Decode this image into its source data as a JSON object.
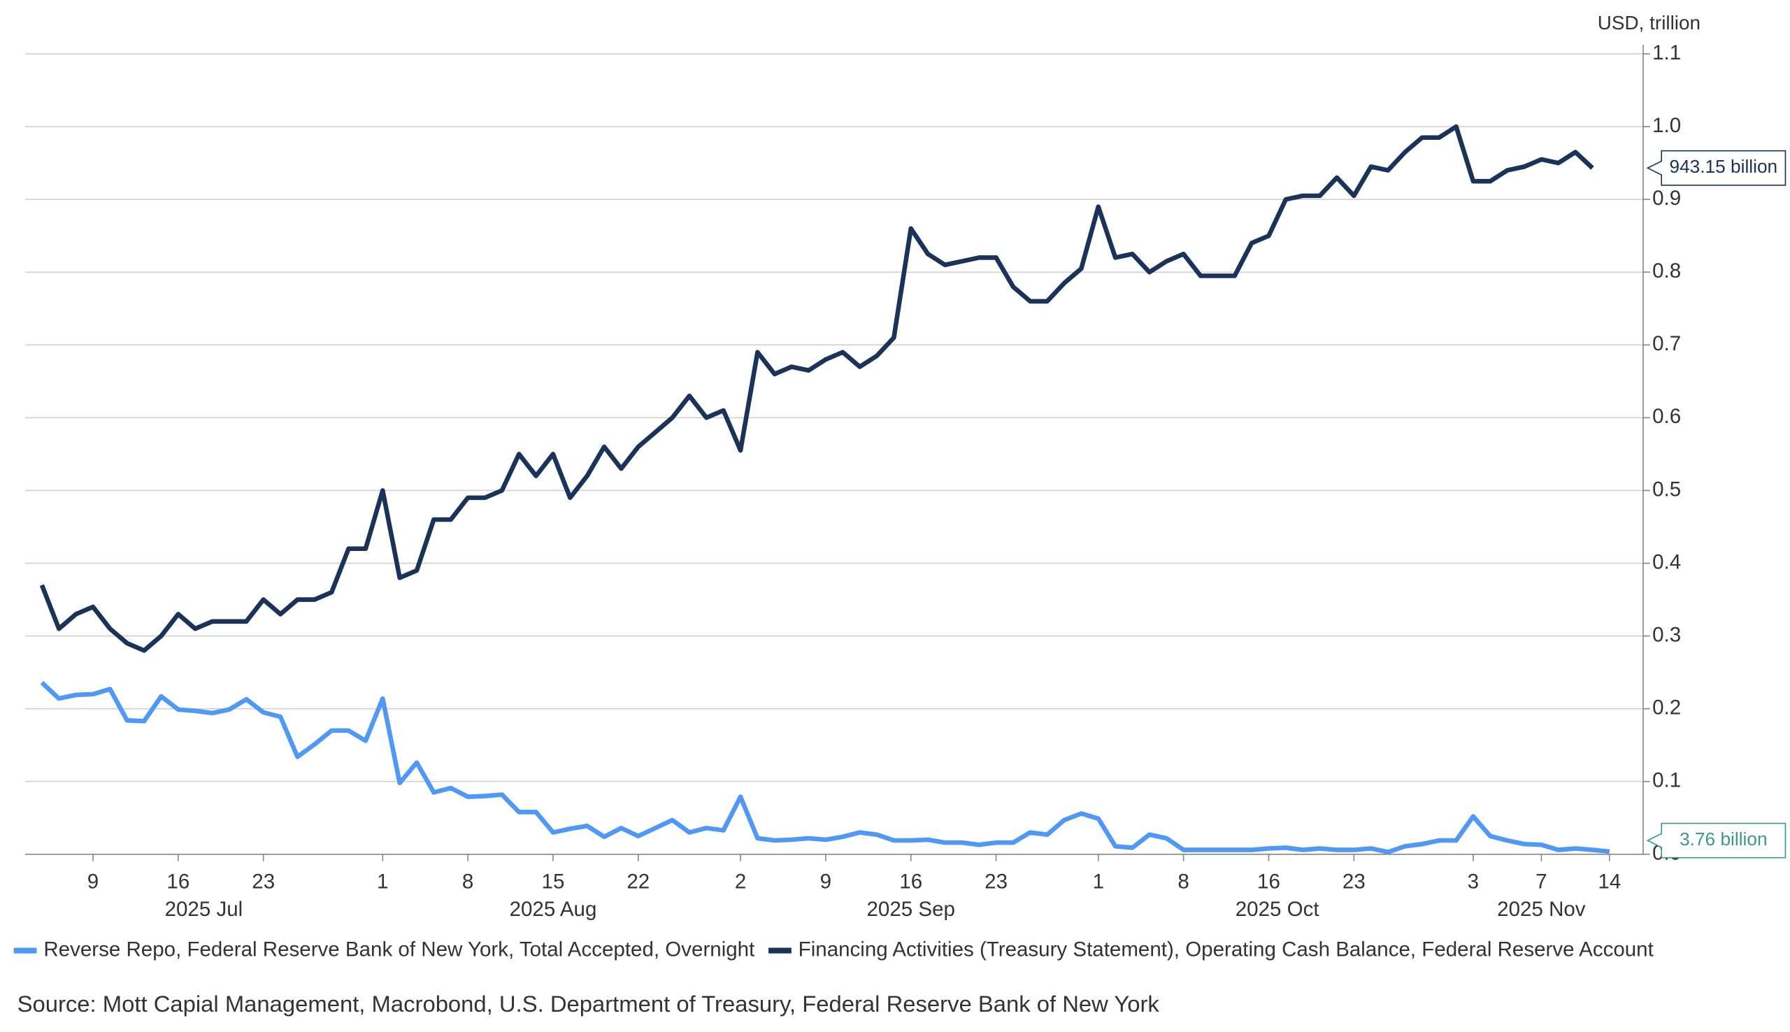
{
  "chart_data": {
    "type": "line",
    "y_axis_label": "USD, trillion",
    "source": "Source: Mott Capial Management, Macrobond, U.S. Department of Treasury, Federal Reserve Bank of New York",
    "grid": true,
    "y_axis_side": "right",
    "x": [
      "2025-07-03",
      "2025-07-07",
      "2025-07-08",
      "2025-07-09",
      "2025-07-10",
      "2025-07-11",
      "2025-07-14",
      "2025-07-15",
      "2025-07-16",
      "2025-07-17",
      "2025-07-18",
      "2025-07-21",
      "2025-07-22",
      "2025-07-23",
      "2025-07-24",
      "2025-07-25",
      "2025-07-28",
      "2025-07-29",
      "2025-07-30",
      "2025-07-31",
      "2025-08-01",
      "2025-08-04",
      "2025-08-05",
      "2025-08-06",
      "2025-08-07",
      "2025-08-08",
      "2025-08-11",
      "2025-08-12",
      "2025-08-13",
      "2025-08-14",
      "2025-08-15",
      "2025-08-18",
      "2025-08-19",
      "2025-08-20",
      "2025-08-21",
      "2025-08-22",
      "2025-08-25",
      "2025-08-26",
      "2025-08-27",
      "2025-08-28",
      "2025-08-29",
      "2025-09-02",
      "2025-09-03",
      "2025-09-04",
      "2025-09-05",
      "2025-09-08",
      "2025-09-09",
      "2025-09-10",
      "2025-09-11",
      "2025-09-12",
      "2025-09-15",
      "2025-09-16",
      "2025-09-17",
      "2025-09-18",
      "2025-09-19",
      "2025-09-22",
      "2025-09-23",
      "2025-09-24",
      "2025-09-25",
      "2025-09-26",
      "2025-09-29",
      "2025-09-30",
      "2025-10-01",
      "2025-10-02",
      "2025-10-03",
      "2025-10-06",
      "2025-10-07",
      "2025-10-08",
      "2025-10-09",
      "2025-10-10",
      "2025-10-14",
      "2025-10-15",
      "2025-10-16",
      "2025-10-17",
      "2025-10-20",
      "2025-10-21",
      "2025-10-22",
      "2025-10-23",
      "2025-10-24",
      "2025-10-27",
      "2025-10-28",
      "2025-10-29",
      "2025-10-30",
      "2025-10-31",
      "2025-11-03",
      "2025-11-04",
      "2025-11-05",
      "2025-11-06",
      "2025-11-07",
      "2025-11-10",
      "2025-11-12",
      "2025-11-13",
      "2025-11-14"
    ],
    "xticks": [
      {
        "value": "2025-07-09",
        "label": "9"
      },
      {
        "value": "2025-07-16",
        "label": "16"
      },
      {
        "value": "2025-07-23",
        "label": "23"
      },
      {
        "value": "2025-08-01",
        "label": "1"
      },
      {
        "value": "2025-08-08",
        "label": "8"
      },
      {
        "value": "2025-08-15",
        "label": "15"
      },
      {
        "value": "2025-08-22",
        "label": "22"
      },
      {
        "value": "2025-09-02",
        "label": "2"
      },
      {
        "value": "2025-09-09",
        "label": "9"
      },
      {
        "value": "2025-09-16",
        "label": "16"
      },
      {
        "value": "2025-09-23",
        "label": "23"
      },
      {
        "value": "2025-10-01",
        "label": "1"
      },
      {
        "value": "2025-10-08",
        "label": "8"
      },
      {
        "value": "2025-10-16",
        "label": "16"
      },
      {
        "value": "2025-10-23",
        "label": "23"
      },
      {
        "value": "2025-11-03",
        "label": "3"
      },
      {
        "value": "2025-11-07",
        "label": "7"
      },
      {
        "value": "2025-11-14",
        "label": "14"
      }
    ],
    "month_labels": [
      "2025 Jul",
      "2025 Aug",
      "2025 Sep",
      "2025 Oct",
      "2025 Nov"
    ],
    "ylim": [
      0,
      1.1
    ],
    "yticks": [
      {
        "value": 0,
        "label": "0.0"
      },
      0.1,
      0.2,
      0.3,
      0.4,
      0.5,
      0.6,
      0.7,
      0.8,
      0.9,
      {
        "value": 1,
        "label": "1.0"
      },
      1.1
    ],
    "series": [
      {
        "name": "Reverse Repo, Federal Reserve Bank of New York, Total Accepted, Overnight",
        "color": "#4f98f5",
        "values": [
          0.236,
          0.214,
          0.219,
          0.22,
          0.227,
          0.184,
          0.183,
          0.217,
          0.199,
          0.197,
          0.194,
          0.199,
          0.213,
          0.195,
          0.189,
          0.134,
          0.151,
          0.17,
          0.17,
          0.156,
          0.214,
          0.098,
          0.126,
          0.085,
          0.091,
          0.079,
          0.08,
          0.082,
          0.058,
          0.058,
          0.03,
          0.035,
          0.039,
          0.024,
          0.036,
          0.025,
          0.036,
          0.047,
          0.03,
          0.036,
          0.033,
          0.079,
          0.022,
          0.019,
          0.02,
          0.022,
          0.02,
          0.024,
          0.03,
          0.027,
          0.019,
          0.019,
          0.02,
          0.016,
          0.016,
          0.013,
          0.016,
          0.016,
          0.03,
          0.027,
          0.047,
          0.056,
          0.049,
          0.011,
          0.009,
          0.027,
          0.022,
          0.006,
          0.006,
          0.006,
          0.006,
          0.006,
          0.008,
          0.009,
          0.006,
          0.008,
          0.006,
          0.006,
          0.008,
          0.003,
          0.011,
          0.014,
          0.019,
          0.019,
          0.052,
          0.025,
          0.019,
          0.014,
          0.013,
          0.006,
          0.008,
          0.006,
          0.00376
        ],
        "value_labels": [
          null,
          null,
          null,
          null,
          null,
          null,
          null,
          null,
          null,
          null,
          null,
          null,
          null,
          null,
          null,
          null,
          null,
          null,
          null,
          null,
          null,
          null,
          null,
          null,
          null,
          null,
          null,
          null,
          null,
          null,
          null,
          null,
          null,
          null,
          null,
          null,
          null,
          null,
          null,
          null,
          null,
          null,
          null,
          null,
          null,
          null,
          null,
          null,
          null,
          null,
          null,
          null,
          null,
          null,
          null,
          null,
          null,
          null,
          null,
          null,
          null,
          null,
          null,
          null,
          null,
          null,
          null,
          null,
          null,
          null,
          null,
          null,
          null,
          null,
          null,
          null,
          null,
          null,
          null,
          null,
          null,
          null,
          null,
          null,
          null,
          null,
          null,
          null,
          null,
          null,
          null,
          null,
          "3.76 billion"
        ],
        "label_color": "#3a9a8a"
      },
      {
        "name": "Financing Activities (Treasury Statement), Operating Cash Balance, Federal Reserve Account",
        "color": "#1b3358",
        "values": [
          0.37,
          0.31,
          0.33,
          0.34,
          0.31,
          0.29,
          0.28,
          0.3,
          0.33,
          0.31,
          0.32,
          0.32,
          0.32,
          0.35,
          0.33,
          0.35,
          0.35,
          0.36,
          0.42,
          0.42,
          0.5,
          0.38,
          0.39,
          0.46,
          0.46,
          0.49,
          0.49,
          0.5,
          0.55,
          0.52,
          0.55,
          0.49,
          0.52,
          0.56,
          0.53,
          0.56,
          0.58,
          0.6,
          0.63,
          0.6,
          0.61,
          0.555,
          0.69,
          0.66,
          0.67,
          0.665,
          0.68,
          0.69,
          0.67,
          0.685,
          0.71,
          0.86,
          0.825,
          0.81,
          0.815,
          0.82,
          0.82,
          0.78,
          0.76,
          0.76,
          0.785,
          0.805,
          0.89,
          0.82,
          0.825,
          0.8,
          0.815,
          0.825,
          0.795,
          0.795,
          0.795,
          0.84,
          0.85,
          0.9,
          0.905,
          0.905,
          0.93,
          0.905,
          0.945,
          0.94,
          0.965,
          0.985,
          0.985,
          1.0,
          0.925,
          0.925,
          0.94,
          0.945,
          0.955,
          0.95,
          0.965,
          0.94315,
          null
        ],
        "value_labels": [
          null,
          null,
          null,
          null,
          null,
          null,
          null,
          null,
          null,
          null,
          null,
          null,
          null,
          null,
          null,
          null,
          null,
          null,
          null,
          null,
          null,
          null,
          null,
          null,
          null,
          null,
          null,
          null,
          null,
          null,
          null,
          null,
          null,
          null,
          null,
          null,
          null,
          null,
          null,
          null,
          null,
          null,
          null,
          null,
          null,
          null,
          null,
          null,
          null,
          null,
          null,
          null,
          null,
          null,
          null,
          null,
          null,
          null,
          null,
          null,
          null,
          null,
          null,
          null,
          null,
          null,
          null,
          null,
          null,
          null,
          null,
          null,
          null,
          null,
          null,
          null,
          null,
          null,
          null,
          null,
          null,
          null,
          null,
          null,
          null,
          null,
          null,
          null,
          null,
          null,
          null,
          "943.15 billion",
          null
        ],
        "label_color": "#1b3358"
      }
    ]
  }
}
